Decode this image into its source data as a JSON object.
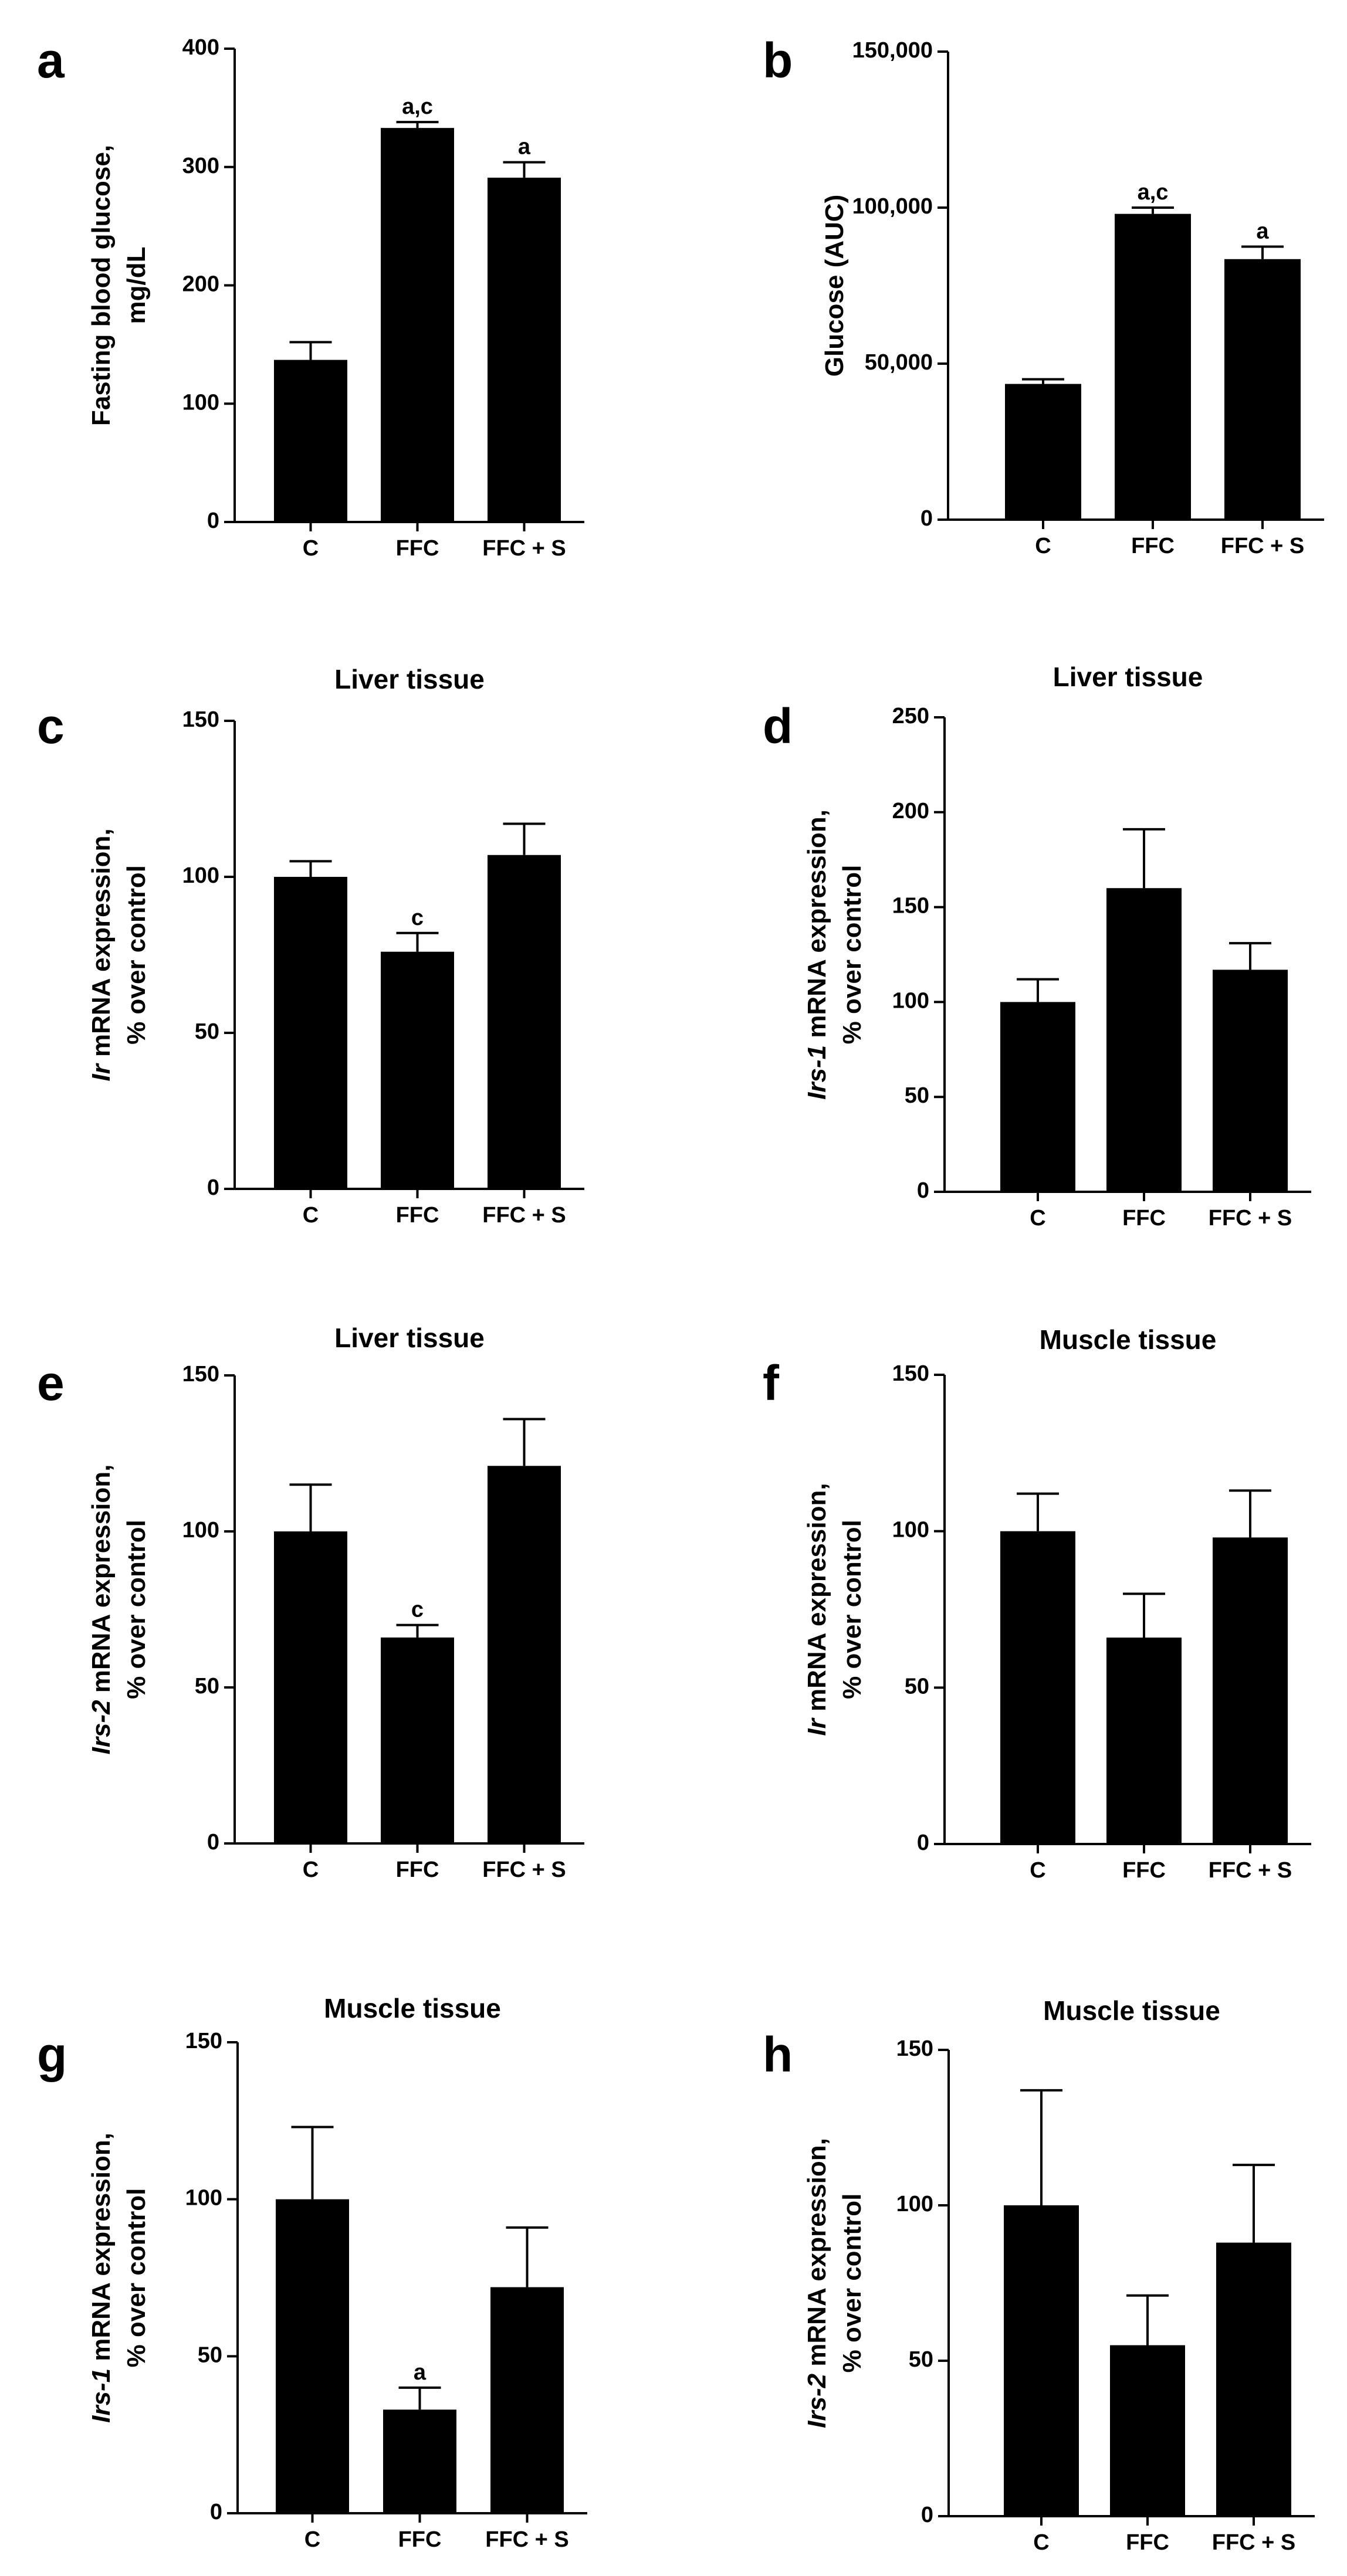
{
  "figure": {
    "bar_color": "#000000",
    "axis_color": "#000000",
    "background": "#ffffff"
  },
  "chart_data": [
    {
      "panel": "a",
      "type": "bar",
      "title": "",
      "ylabel_lines": [
        {
          "italic": "",
          "rest": "Fasting blood glucose,"
        },
        {
          "italic": "",
          "rest": "mg/dL"
        }
      ],
      "xlabel": "",
      "categories": [
        "C",
        "FFC",
        "FFC + S"
      ],
      "values": [
        137,
        333,
        291
      ],
      "errors": [
        15,
        5,
        13
      ],
      "annotations": [
        "",
        "a,c",
        "a"
      ],
      "ylim": [
        0,
        400
      ],
      "ticks": [
        0,
        100,
        200,
        300,
        400
      ],
      "tick_labels": [
        "0",
        "100",
        "200",
        "300",
        "400"
      ]
    },
    {
      "panel": "b",
      "type": "bar",
      "title": "",
      "ylabel_lines": [
        {
          "italic": "",
          "rest": "Glucose (AUC)"
        }
      ],
      "xlabel": "",
      "categories": [
        "C",
        "FFC",
        "FFC + S"
      ],
      "values": [
        43500,
        98000,
        83500
      ],
      "errors": [
        1500,
        2000,
        4000
      ],
      "annotations": [
        "",
        "a,c",
        "a"
      ],
      "ylim": [
        0,
        150000
      ],
      "ticks": [
        0,
        50000,
        100000,
        150000
      ],
      "tick_labels": [
        "0",
        "50,000",
        "100,000",
        "150,000"
      ]
    },
    {
      "panel": "c",
      "type": "bar",
      "title": "Liver tissue",
      "ylabel_lines": [
        {
          "italic": "Ir",
          "rest": " mRNA expression,"
        },
        {
          "italic": "",
          "rest": "% over control"
        }
      ],
      "xlabel": "",
      "categories": [
        "C",
        "FFC",
        "FFC + S"
      ],
      "values": [
        100,
        76,
        107
      ],
      "errors": [
        5,
        6,
        10
      ],
      "annotations": [
        "",
        "c",
        ""
      ],
      "ylim": [
        0,
        150
      ],
      "ticks": [
        0,
        50,
        100,
        150
      ],
      "tick_labels": [
        "0",
        "50",
        "100",
        "150"
      ]
    },
    {
      "panel": "d",
      "type": "bar",
      "title": "Liver tissue",
      "ylabel_lines": [
        {
          "italic": "Irs-1",
          "rest": " mRNA expression,"
        },
        {
          "italic": "",
          "rest": "% over control"
        }
      ],
      "xlabel": "",
      "categories": [
        "C",
        "FFC",
        "FFC + S"
      ],
      "values": [
        100,
        160,
        117
      ],
      "errors": [
        12,
        31,
        14
      ],
      "annotations": [
        "",
        "",
        ""
      ],
      "ylim": [
        0,
        250
      ],
      "ticks": [
        0,
        50,
        100,
        150,
        200,
        250
      ],
      "tick_labels": [
        "0",
        "50",
        "100",
        "150",
        "200",
        "250"
      ]
    },
    {
      "panel": "e",
      "type": "bar",
      "title": "Liver tissue",
      "ylabel_lines": [
        {
          "italic": "Irs-2",
          "rest": " mRNA expression,"
        },
        {
          "italic": "",
          "rest": "% over control"
        }
      ],
      "xlabel": "",
      "categories": [
        "C",
        "FFC",
        "FFC + S"
      ],
      "values": [
        100,
        66,
        121
      ],
      "errors": [
        15,
        4,
        15
      ],
      "annotations": [
        "",
        "c",
        ""
      ],
      "ylim": [
        0,
        150
      ],
      "ticks": [
        0,
        50,
        100,
        150
      ],
      "tick_labels": [
        "0",
        "50",
        "100",
        "150"
      ]
    },
    {
      "panel": "f",
      "type": "bar",
      "title": "Muscle tissue",
      "ylabel_lines": [
        {
          "italic": "Ir",
          "rest": " mRNA expression,"
        },
        {
          "italic": "",
          "rest": "% over control"
        }
      ],
      "xlabel": "",
      "categories": [
        "C",
        "FFC",
        "FFC + S"
      ],
      "values": [
        100,
        66,
        98
      ],
      "errors": [
        12,
        14,
        15
      ],
      "annotations": [
        "",
        "",
        ""
      ],
      "ylim": [
        0,
        150
      ],
      "ticks": [
        0,
        50,
        100,
        150
      ],
      "tick_labels": [
        "0",
        "50",
        "100",
        "150"
      ]
    },
    {
      "panel": "g",
      "type": "bar",
      "title": "Muscle tissue",
      "ylabel_lines": [
        {
          "italic": "Irs-1",
          "rest": " mRNA expression,"
        },
        {
          "italic": "",
          "rest": "% over control"
        }
      ],
      "xlabel": "",
      "categories": [
        "C",
        "FFC",
        "FFC + S"
      ],
      "values": [
        100,
        33,
        72
      ],
      "errors": [
        23,
        7,
        19
      ],
      "annotations": [
        "",
        "a",
        ""
      ],
      "ylim": [
        0,
        150
      ],
      "ticks": [
        0,
        50,
        100,
        150
      ],
      "tick_labels": [
        "0",
        "50",
        "100",
        "150"
      ]
    },
    {
      "panel": "h",
      "type": "bar",
      "title": "Muscle tissue",
      "ylabel_lines": [
        {
          "italic": "Irs-2",
          "rest": " mRNA expression,"
        },
        {
          "italic": "",
          "rest": "% over control"
        }
      ],
      "xlabel": "",
      "categories": [
        "C",
        "FFC",
        "FFC + S"
      ],
      "values": [
        100,
        55,
        88
      ],
      "errors": [
        37,
        16,
        25
      ],
      "annotations": [
        "",
        "",
        ""
      ],
      "ylim": [
        0,
        150
      ],
      "ticks": [
        0,
        50,
        100,
        150
      ],
      "tick_labels": [
        "0",
        "50",
        "100",
        "150"
      ]
    }
  ]
}
